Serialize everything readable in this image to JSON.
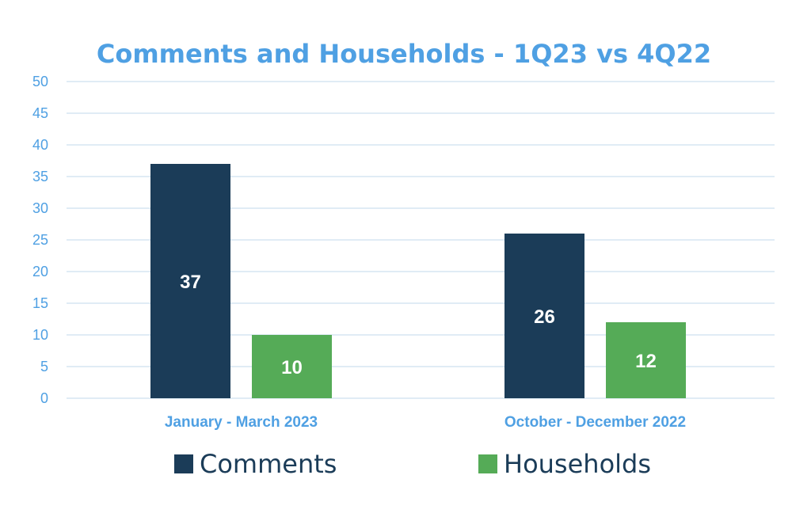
{
  "chart_data": {
    "type": "bar",
    "title": "Comments and Households - 1Q23 vs 4Q22",
    "categories": [
      "January - March 2023",
      "October - December 2022"
    ],
    "series": [
      {
        "name": "Comments",
        "values": [
          37,
          26
        ],
        "color": "#1b3c58"
      },
      {
        "name": "Households",
        "values": [
          10,
          12
        ],
        "color": "#55ab57"
      }
    ],
    "ylim": [
      0,
      50
    ],
    "yticks": [
      0,
      5,
      10,
      15,
      20,
      25,
      30,
      35,
      40,
      45,
      50
    ],
    "grid": true,
    "legend_position": "bottom",
    "data_labels": true
  }
}
